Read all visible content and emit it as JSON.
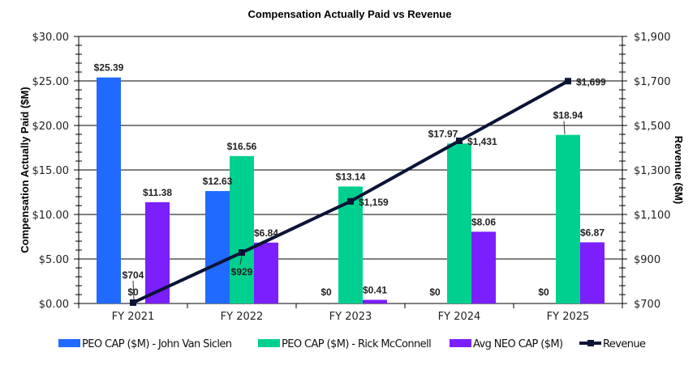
{
  "chart_data": {
    "type": "bar+line",
    "title": "Compensation Actually Paid vs Revenue",
    "categories": [
      "FY 2021",
      "FY 2022",
      "FY 2023",
      "FY 2024",
      "FY 2025"
    ],
    "ylabel": "Compensation Actually Paid ($M)",
    "y2label": "Revenue ($M)",
    "ylim": [
      0,
      30
    ],
    "y_ticks": [
      "$0.00",
      "$5.00",
      "$10.00",
      "$15.00",
      "$20.00",
      "$25.00",
      "$30.00"
    ],
    "y2lim": [
      700,
      1900
    ],
    "y2_ticks": [
      "$700",
      "$900",
      "$1,100",
      "$1,300",
      "$1,500",
      "$1,700",
      "$1,900"
    ],
    "grid": true,
    "legend_position": "bottom",
    "series": [
      {
        "name": "PEO CAP ($M) - John Van Siclen",
        "type": "bar",
        "color": "#1f6bff",
        "values": [
          25.39,
          12.63,
          0,
          0,
          0
        ],
        "labels": [
          "$25.39",
          "$12.63",
          "$0",
          "$0",
          "$0"
        ]
      },
      {
        "name": "PEO CAP ($M) - Rick McConnell",
        "type": "bar",
        "color": "#00d08f",
        "values": [
          0,
          16.56,
          13.14,
          17.97,
          18.94
        ],
        "labels": [
          "$0",
          "$16.56",
          "$13.14",
          "$17.97",
          "$18.94"
        ]
      },
      {
        "name": "Avg NEO CAP ($M)",
        "type": "bar",
        "color": "#7b1fff",
        "values": [
          11.38,
          6.84,
          0.41,
          8.06,
          6.87
        ],
        "labels": [
          "$11.38",
          "$6.84",
          "$0.41",
          "$8.06",
          "$6.87"
        ]
      },
      {
        "name": "Revenue",
        "type": "line",
        "axis": "right",
        "color": "#0b1437",
        "values": [
          704,
          929,
          1159,
          1431,
          1699
        ],
        "labels": [
          "$704",
          "$929",
          "$1,159",
          "$1,431",
          "$1,699"
        ]
      }
    ]
  }
}
